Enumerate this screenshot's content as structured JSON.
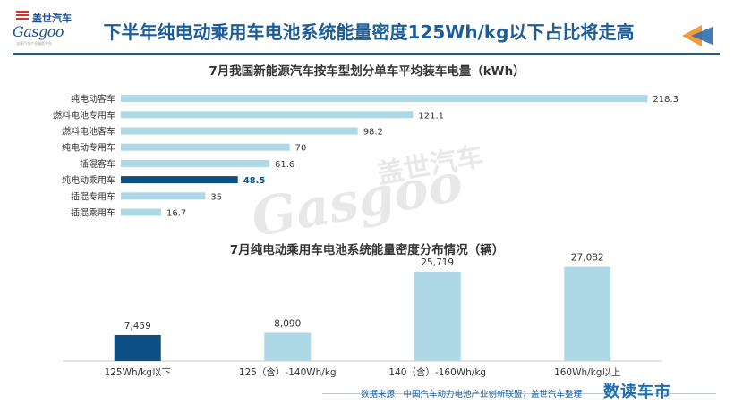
{
  "header": {
    "logo_cn": "盖世汽车",
    "logo_en": "Gasgoo",
    "logo_tagline": "全球汽车产业服务平台",
    "title": "下半年纯电动乘用车电池系统能量密度125Wh/kg以下占比将走高"
  },
  "watermark": {
    "cn": "盖世汽车",
    "en": "Gasgoo"
  },
  "colors": {
    "bar_light": "#add8e6",
    "bar_highlight": "#0b4f85",
    "title_blue": "#1d5c96",
    "arrow_orange": "#f39a3d",
    "arrow_blue": "#2d6fb0"
  },
  "chart_data": [
    {
      "type": "bar",
      "orientation": "horizontal",
      "title": "7月我国新能源汽车按车型划分单车平均装车电量（kWh）",
      "categories": [
        "纯电动客车",
        "燃料电池专用车",
        "燃料电池客车",
        "纯电动专用车",
        "插混客车",
        "纯电动乘用车",
        "插混专用车",
        "插混乘用车"
      ],
      "values": [
        218.3,
        121.1,
        98.2,
        70,
        61.6,
        48.5,
        35,
        16.7
      ],
      "value_labels": [
        "218.3",
        "121.1",
        "98.2",
        "70",
        "61.6",
        "48.5",
        "35",
        "16.7"
      ],
      "highlight_index": 5,
      "xlim": [
        0,
        220
      ],
      "grid": false,
      "legend": "none"
    },
    {
      "type": "bar",
      "orientation": "vertical",
      "title": "7月纯电动乘用车电池系统能量密度分布情况（辆）",
      "categories": [
        "125Wh/kg以下",
        "125（含）-140Wh/kg",
        "140（含）-160Wh/kg",
        "160Wh/kg以上"
      ],
      "values": [
        7459,
        8090,
        25719,
        27082
      ],
      "value_labels": [
        "7,459",
        "8,090",
        "25,719",
        "27,082"
      ],
      "highlight_index": 0,
      "ylim": [
        0,
        28000
      ],
      "grid": false,
      "legend": "none"
    }
  ],
  "footer": {
    "source": "数据来源：中国汽车动力电池产业创新联盟；盖世汽车整理",
    "brand": "数读车市"
  }
}
